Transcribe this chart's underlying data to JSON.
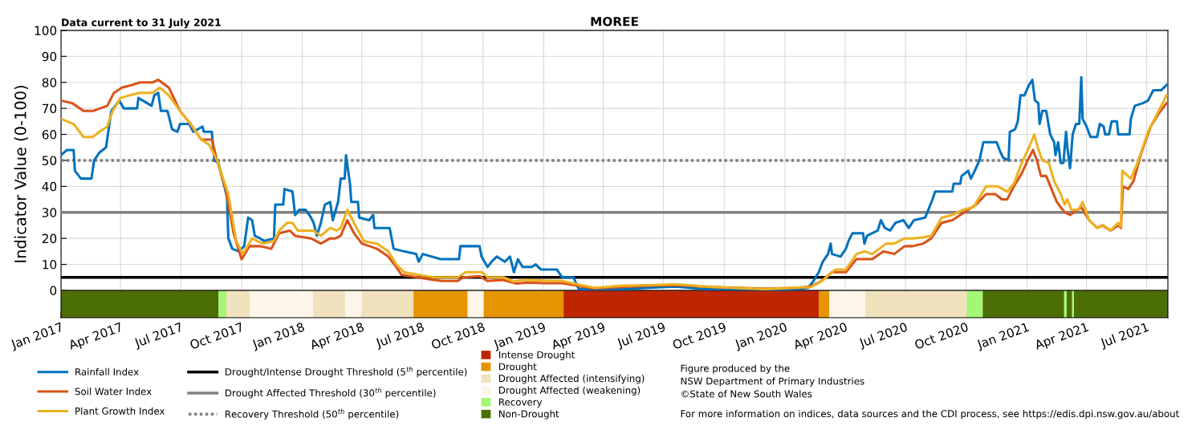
{
  "chart_data": {
    "type": "line",
    "title": "MOREE",
    "ylabel": "Indicator Value (0-100)",
    "annotations": [
      "Data current to 31 July 2021",
      "Figure produced by the\nNSW Department of Primary Industries\n©State of New South Wales",
      "For more information on indices, data sources and the CDI process, see https://edis.dpi.nsw.gov.au/about"
    ],
    "xlim": [
      "2017-01-01",
      "2021-08-02"
    ],
    "xticks": [
      {
        "value": "2017-01-01",
        "label": "Jan 2017"
      },
      {
        "value": "2017-04-01",
        "label": "Apr 2017"
      },
      {
        "value": "2017-07-01",
        "label": "Jul 2017"
      },
      {
        "value": "2017-10-01",
        "label": "Oct 2017"
      },
      {
        "value": "2018-01-01",
        "label": "Jan 2018"
      },
      {
        "value": "2018-04-01",
        "label": "Apr 2018"
      },
      {
        "value": "2018-07-01",
        "label": "Jul 2018"
      },
      {
        "value": "2018-10-01",
        "label": "Oct 2018"
      },
      {
        "value": "2019-01-01",
        "label": "Jan 2019"
      },
      {
        "value": "2019-04-01",
        "label": "Apr 2019"
      },
      {
        "value": "2019-07-01",
        "label": "Jul 2019"
      },
      {
        "value": "2019-10-01",
        "label": "Oct 2019"
      },
      {
        "value": "2020-01-01",
        "label": "Jan 2020"
      },
      {
        "value": "2020-04-01",
        "label": "Apr 2020"
      },
      {
        "value": "2020-07-01",
        "label": "Jul 2020"
      },
      {
        "value": "2020-10-01",
        "label": "Oct 2020"
      },
      {
        "value": "2021-01-01",
        "label": "Jan 2021"
      },
      {
        "value": "2021-04-01",
        "label": "Apr 2021"
      },
      {
        "value": "2021-07-01",
        "label": "Jul 2021"
      }
    ],
    "ylim": [
      -10.5,
      100
    ],
    "yticks": [
      0,
      10,
      20,
      30,
      40,
      50,
      60,
      70,
      80,
      90,
      100
    ],
    "grid": true,
    "legend": "bottom",
    "series": [
      {
        "name": "Rainfall Index",
        "color": "#0072bd",
        "x": [
          "2017-01-01",
          "2017-01-10",
          "2017-01-20",
          "2017-01-22",
          "2017-01-31",
          "2017-02-16",
          "2017-02-20",
          "2017-02-28",
          "2017-03-10",
          "2017-03-14",
          "2017-03-18",
          "2017-03-30",
          "2017-04-06",
          "2017-04-26",
          "2017-04-28",
          "2017-05-18",
          "2017-05-22",
          "2017-05-28",
          "2017-06-01",
          "2017-06-11",
          "2017-06-18",
          "2017-06-26",
          "2017-06-30",
          "2017-07-14",
          "2017-07-20",
          "2017-08-03",
          "2017-08-05",
          "2017-08-17",
          "2017-08-21",
          "2017-08-27",
          "2017-09-09",
          "2017-09-11",
          "2017-09-17",
          "2017-09-27",
          "2017-10-05",
          "2017-10-11",
          "2017-10-17",
          "2017-10-21",
          "2017-10-29",
          "2017-11-04",
          "2017-11-19",
          "2017-11-21",
          "2017-12-03",
          "2017-12-05",
          "2017-12-17",
          "2017-12-21",
          "2017-12-27",
          "2018-01-06",
          "2018-01-14",
          "2018-01-18",
          "2018-01-23",
          "2018-01-29",
          "2018-02-04",
          "2018-02-12",
          "2018-02-16",
          "2018-02-24",
          "2018-02-28",
          "2018-03-06",
          "2018-03-08",
          "2018-03-14",
          "2018-03-16",
          "2018-03-26",
          "2018-03-28",
          "2018-04-12",
          "2018-04-18",
          "2018-04-20",
          "2018-05-13",
          "2018-05-19",
          "2018-06-04",
          "2018-06-22",
          "2018-06-26",
          "2018-07-02",
          "2018-07-29",
          "2018-08-02",
          "2018-08-26",
          "2018-08-28",
          "2018-09-26",
          "2018-09-29",
          "2018-10-08",
          "2018-10-14",
          "2018-10-22",
          "2018-11-03",
          "2018-11-11",
          "2018-11-17",
          "2018-11-23",
          "2018-11-30",
          "2018-12-14",
          "2018-12-20",
          "2018-12-28",
          "2019-01-21",
          "2019-01-29",
          "2019-02-15",
          "2019-02-23",
          "2019-03-19",
          "2019-04-29",
          "2019-06-08",
          "2019-07-19",
          "2019-08-23",
          "2019-10-02",
          "2020-01-12",
          "2020-02-05",
          "2020-02-13",
          "2020-02-21",
          "2020-02-27",
          "2020-03-06",
          "2020-03-10",
          "2020-03-12",
          "2020-03-25",
          "2020-04-02",
          "2020-04-06",
          "2020-04-12",
          "2020-04-28",
          "2020-04-30",
          "2020-05-04",
          "2020-05-20",
          "2020-05-25",
          "2020-05-31",
          "2020-06-08",
          "2020-06-16",
          "2020-06-28",
          "2020-07-06",
          "2020-07-14",
          "2020-07-31",
          "2020-08-11",
          "2020-08-15",
          "2020-09-10",
          "2020-09-12",
          "2020-09-22",
          "2020-09-24",
          "2020-10-04",
          "2020-10-08",
          "2020-10-14",
          "2020-10-21",
          "2020-10-27",
          "2020-11-16",
          "2020-11-22",
          "2020-11-26",
          "2020-12-04",
          "2020-12-06",
          "2020-12-14",
          "2020-12-18",
          "2020-12-22",
          "2020-12-28",
          "2021-01-04",
          "2021-01-09",
          "2021-01-13",
          "2021-01-18",
          "2021-01-20",
          "2021-01-24",
          "2021-01-30",
          "2021-02-05",
          "2021-02-11",
          "2021-02-13",
          "2021-02-17",
          "2021-02-21",
          "2021-02-25",
          "2021-03-01",
          "2021-03-03",
          "2021-03-07",
          "2021-03-11",
          "2021-03-16",
          "2021-03-21",
          "2021-03-24",
          "2021-03-26",
          "2021-04-01",
          "2021-04-07",
          "2021-04-17",
          "2021-04-21",
          "2021-04-27",
          "2021-04-29",
          "2021-05-05",
          "2021-05-09",
          "2021-05-17",
          "2021-05-19",
          "2021-06-05",
          "2021-06-07",
          "2021-06-13",
          "2021-06-25",
          "2021-07-03",
          "2021-07-11",
          "2021-07-23",
          "2021-07-31"
        ],
        "values": [
          52,
          54,
          54,
          46,
          43,
          43,
          50,
          53,
          55,
          62,
          69,
          73,
          70,
          70,
          74,
          71,
          75,
          76,
          69,
          69,
          62,
          61,
          64,
          64,
          61,
          63,
          61,
          61,
          50,
          49,
          36,
          20,
          16,
          15,
          17,
          28,
          27,
          21,
          20,
          19,
          20,
          33,
          33,
          39,
          38,
          29,
          31,
          31,
          28,
          26,
          21,
          26,
          33,
          34,
          27,
          34,
          43,
          43,
          52,
          41,
          34,
          34,
          28,
          27,
          29,
          24,
          24,
          16,
          15,
          14,
          11,
          14,
          12,
          12,
          12,
          17,
          17,
          13,
          9,
          11,
          13,
          11,
          13,
          7,
          12,
          9,
          9,
          10,
          8,
          8,
          5,
          5,
          0.5,
          0.5,
          0.5,
          1,
          1.5,
          0.7,
          0.5,
          0.3,
          1,
          3.6,
          7,
          11,
          14,
          18,
          14,
          13,
          16,
          19,
          22,
          22,
          18,
          21,
          23,
          27,
          24,
          23,
          26,
          27,
          24,
          27,
          28,
          35,
          38,
          38,
          41,
          41,
          44,
          46,
          43,
          46,
          50,
          57,
          57,
          53,
          51,
          50,
          61,
          62,
          65,
          75,
          75,
          79,
          81,
          73,
          72,
          64,
          69,
          69,
          60,
          57,
          52,
          57,
          49,
          49,
          61,
          55,
          47,
          60,
          64,
          64,
          82,
          66,
          63,
          59,
          59,
          64,
          63,
          60,
          60,
          65,
          65,
          60,
          60,
          66,
          71,
          72,
          73,
          77,
          77,
          79
        ]
      },
      {
        "name": "Soil Water Index",
        "color": "#d95319",
        "x": [
          "2017-01-01",
          "2017-01-18",
          "2017-02-04",
          "2017-02-18",
          "2017-03-12",
          "2017-03-22",
          "2017-04-03",
          "2017-04-18",
          "2017-04-30",
          "2017-05-20",
          "2017-05-28",
          "2017-06-13",
          "2017-06-30",
          "2017-07-16",
          "2017-08-01",
          "2017-08-17",
          "2017-08-25",
          "2017-09-07",
          "2017-09-19",
          "2017-10-01",
          "2017-10-13",
          "2017-10-29",
          "2017-11-15",
          "2017-11-27",
          "2017-12-13",
          "2017-12-21",
          "2018-01-14",
          "2018-01-29",
          "2018-02-12",
          "2018-02-20",
          "2018-02-28",
          "2018-03-10",
          "2018-03-20",
          "2018-04-01",
          "2018-04-24",
          "2018-05-11",
          "2018-05-23",
          "2018-05-31",
          "2018-06-24",
          "2018-07-19",
          "2018-07-31",
          "2018-08-24",
          "2018-09-01",
          "2018-09-26",
          "2018-10-08",
          "2018-11-01",
          "2018-11-21",
          "2018-12-08",
          "2019-01-01",
          "2019-01-29",
          "2019-02-27",
          "2019-03-19",
          "2019-04-29",
          "2019-06-08",
          "2019-07-19",
          "2019-09-12",
          "2019-12-02",
          "2020-01-20",
          "2020-02-09",
          "2020-02-25",
          "2020-03-12",
          "2020-04-02",
          "2020-04-18",
          "2020-05-12",
          "2020-05-29",
          "2020-06-14",
          "2020-06-30",
          "2020-07-12",
          "2020-07-28",
          "2020-08-09",
          "2020-08-17",
          "2020-08-25",
          "2020-09-10",
          "2020-09-22",
          "2020-10-04",
          "2020-10-16",
          "2020-10-31",
          "2020-11-14",
          "2020-11-24",
          "2020-12-02",
          "2020-12-12",
          "2020-12-24",
          "2021-01-02",
          "2021-01-10",
          "2021-01-16",
          "2021-01-22",
          "2021-01-30",
          "2021-02-15",
          "2021-02-27",
          "2021-03-07",
          "2021-03-24",
          "2021-04-05",
          "2021-04-17",
          "2021-04-25",
          "2021-05-07",
          "2021-05-19",
          "2021-05-23",
          "2021-05-26",
          "2021-06-03",
          "2021-06-11",
          "2021-06-23",
          "2021-07-07",
          "2021-07-19",
          "2021-07-31"
        ],
        "values": [
          73,
          72,
          69,
          69,
          71,
          76,
          78,
          79,
          80,
          80,
          81,
          78,
          69,
          64,
          58,
          58,
          50,
          39,
          22,
          12,
          17,
          17,
          16,
          22,
          23,
          21,
          20,
          18,
          20,
          20,
          21,
          27,
          22,
          18,
          16,
          13,
          9,
          6,
          5,
          4,
          3.6,
          3.6,
          5,
          5.5,
          3.6,
          4,
          2.6,
          3,
          2.8,
          2.8,
          1.5,
          0.8,
          1.3,
          1.8,
          2,
          1.3,
          0.7,
          1,
          1.5,
          3.6,
          7,
          7,
          12,
          12,
          15,
          14,
          17,
          17,
          18,
          20,
          23,
          26,
          27,
          29,
          31,
          33,
          37,
          37,
          35,
          35,
          40,
          45,
          50,
          54,
          50,
          44,
          44,
          34,
          30,
          29,
          32,
          27,
          24,
          25,
          23,
          25,
          24,
          40,
          39,
          42,
          53,
          63,
          68,
          72
        ]
      },
      {
        "name": "Plant Growth Index",
        "color": "#edb120",
        "x": [
          "2017-01-01",
          "2017-01-20",
          "2017-02-04",
          "2017-02-18",
          "2017-02-28",
          "2017-03-12",
          "2017-03-20",
          "2017-04-01",
          "2017-04-14",
          "2017-04-30",
          "2017-05-20",
          "2017-05-30",
          "2017-06-13",
          "2017-06-30",
          "2017-07-16",
          "2017-08-01",
          "2017-08-13",
          "2017-08-25",
          "2017-09-11",
          "2017-09-23",
          "2017-10-03",
          "2017-10-17",
          "2017-11-02",
          "2017-11-19",
          "2017-11-27",
          "2017-12-09",
          "2017-12-17",
          "2017-12-25",
          "2018-01-18",
          "2018-01-29",
          "2018-02-12",
          "2018-02-22",
          "2018-02-28",
          "2018-03-10",
          "2018-03-20",
          "2018-04-04",
          "2018-04-24",
          "2018-05-11",
          "2018-05-23",
          "2018-06-04",
          "2018-06-24",
          "2018-07-19",
          "2018-08-24",
          "2018-09-05",
          "2018-09-30",
          "2018-10-08",
          "2018-11-01",
          "2018-11-17",
          "2018-11-30",
          "2019-01-01",
          "2019-01-29",
          "2019-02-27",
          "2019-03-19",
          "2019-04-29",
          "2019-06-08",
          "2019-07-19",
          "2019-09-12",
          "2019-12-02",
          "2020-02-09",
          "2020-02-25",
          "2020-03-17",
          "2020-04-02",
          "2020-04-18",
          "2020-04-30",
          "2020-05-12",
          "2020-06-02",
          "2020-06-14",
          "2020-06-30",
          "2020-07-12",
          "2020-07-28",
          "2020-08-09",
          "2020-08-25",
          "2020-09-10",
          "2020-09-26",
          "2020-10-12",
          "2020-10-31",
          "2020-11-18",
          "2020-12-02",
          "2020-12-12",
          "2020-12-24",
          "2021-01-04",
          "2021-01-12",
          "2021-01-16",
          "2021-01-24",
          "2021-02-03",
          "2021-02-11",
          "2021-02-21",
          "2021-02-27",
          "2021-03-03",
          "2021-03-09",
          "2021-03-20",
          "2021-03-26",
          "2021-04-05",
          "2021-04-17",
          "2021-04-27",
          "2021-05-07",
          "2021-05-19",
          "2021-05-23",
          "2021-05-25",
          "2021-06-07",
          "2021-06-17",
          "2021-07-03",
          "2021-07-19",
          "2021-07-31"
        ],
        "values": [
          66,
          64,
          59,
          59,
          61,
          63,
          69,
          74,
          75,
          76,
          76,
          78,
          75,
          69,
          64,
          58,
          56,
          50,
          37,
          19,
          14,
          20,
          18,
          19,
          23,
          26,
          26,
          23,
          23,
          21,
          24,
          23,
          24,
          31,
          26,
          19,
          18,
          15,
          10,
          7,
          6,
          5,
          5,
          7,
          7,
          5,
          5,
          3.4,
          4,
          3.8,
          3.6,
          2,
          1,
          1.8,
          2,
          2.4,
          1.3,
          0.5,
          1.3,
          3.4,
          8,
          8,
          14,
          15,
          14,
          18,
          18,
          20,
          20,
          20.4,
          21,
          28,
          29,
          31,
          32,
          40,
          40,
          38,
          41,
          49,
          55,
          60,
          56,
          50,
          49,
          42,
          37,
          33,
          35,
          31,
          31,
          34,
          27,
          24,
          25,
          23,
          26,
          24.5,
          46,
          43,
          49,
          61,
          69,
          75
        ]
      }
    ],
    "ref_lines": [
      {
        "axis": "y",
        "value": 5,
        "label": "Drought/Intense Drought Threshold (5$^{th}$ percentile)",
        "color": "#000000",
        "line_style": "solid"
      },
      {
        "axis": "y",
        "value": 30,
        "label": "Drought Affected Threshold (30$^{th}$ percentile)",
        "color": "#808080",
        "line_style": "solid"
      },
      {
        "axis": "y",
        "value": 50,
        "label": "Recovery Threshold (50$^{th}$ percentile)",
        "color": "#808080",
        "line_style": "dotted"
      }
    ],
    "bands": [
      {
        "axis": "x",
        "from": "2019-01-31",
        "to": "2020-02-21",
        "label": "Intense Drought",
        "color": "#bf2600"
      },
      {
        "axis": "x",
        "from": "2018-06-18",
        "to": "2018-09-08",
        "label": "Drought",
        "color": "#e69500"
      },
      {
        "axis": "x",
        "from": "2018-10-02",
        "to": "2019-01-31",
        "color": "#e69500"
      },
      {
        "axis": "x",
        "from": "2020-02-21",
        "to": "2020-03-08",
        "color": "#e69500"
      },
      {
        "axis": "x",
        "from": "2017-09-08",
        "to": "2017-10-14",
        "label": "Drought Affected (intensifying)",
        "color": "#efe2bd"
      },
      {
        "axis": "x",
        "from": "2018-01-17",
        "to": "2018-03-07",
        "color": "#efe2bd"
      },
      {
        "axis": "x",
        "from": "2018-04-01",
        "to": "2018-06-18",
        "color": "#efe2bd"
      },
      {
        "axis": "x",
        "from": "2020-05-01",
        "to": "2020-10-02",
        "color": "#efe2bd"
      },
      {
        "axis": "x",
        "from": "2017-10-14",
        "to": "2018-01-17",
        "label": "Drought Affected (weakening)",
        "color": "#fdf5e8"
      },
      {
        "axis": "x",
        "from": "2018-03-07",
        "to": "2018-04-01",
        "color": "#fdf5e8"
      },
      {
        "axis": "x",
        "from": "2018-09-08",
        "to": "2018-10-02",
        "color": "#fdf5e8"
      },
      {
        "axis": "x",
        "from": "2020-03-08",
        "to": "2020-05-01",
        "color": "#fdf5e8"
      },
      {
        "axis": "x",
        "from": "2017-08-27",
        "to": "2017-09-08",
        "label": "Recovery",
        "color": "#a3f774"
      },
      {
        "axis": "x",
        "from": "2020-10-02",
        "to": "2020-10-26",
        "color": "#a3f774"
      },
      {
        "axis": "x",
        "from": "2021-02-26",
        "to": "2021-03-02",
        "color": "#a3f774"
      },
      {
        "axis": "x",
        "from": "2021-03-10",
        "to": "2021-03-13",
        "color": "#a3f774"
      },
      {
        "axis": "x",
        "from": "2017-01-01",
        "to": "2017-08-27",
        "label": "Non-Drought",
        "color": "#4b6f04"
      },
      {
        "axis": "x",
        "from": "2020-10-26",
        "to": "2021-02-26",
        "color": "#4b6f04"
      },
      {
        "axis": "x",
        "from": "2021-03-02",
        "to": "2021-03-10",
        "color": "#4b6f04"
      },
      {
        "axis": "x",
        "from": "2021-03-13",
        "to": "2021-08-02",
        "color": "#4b6f04"
      }
    ]
  }
}
